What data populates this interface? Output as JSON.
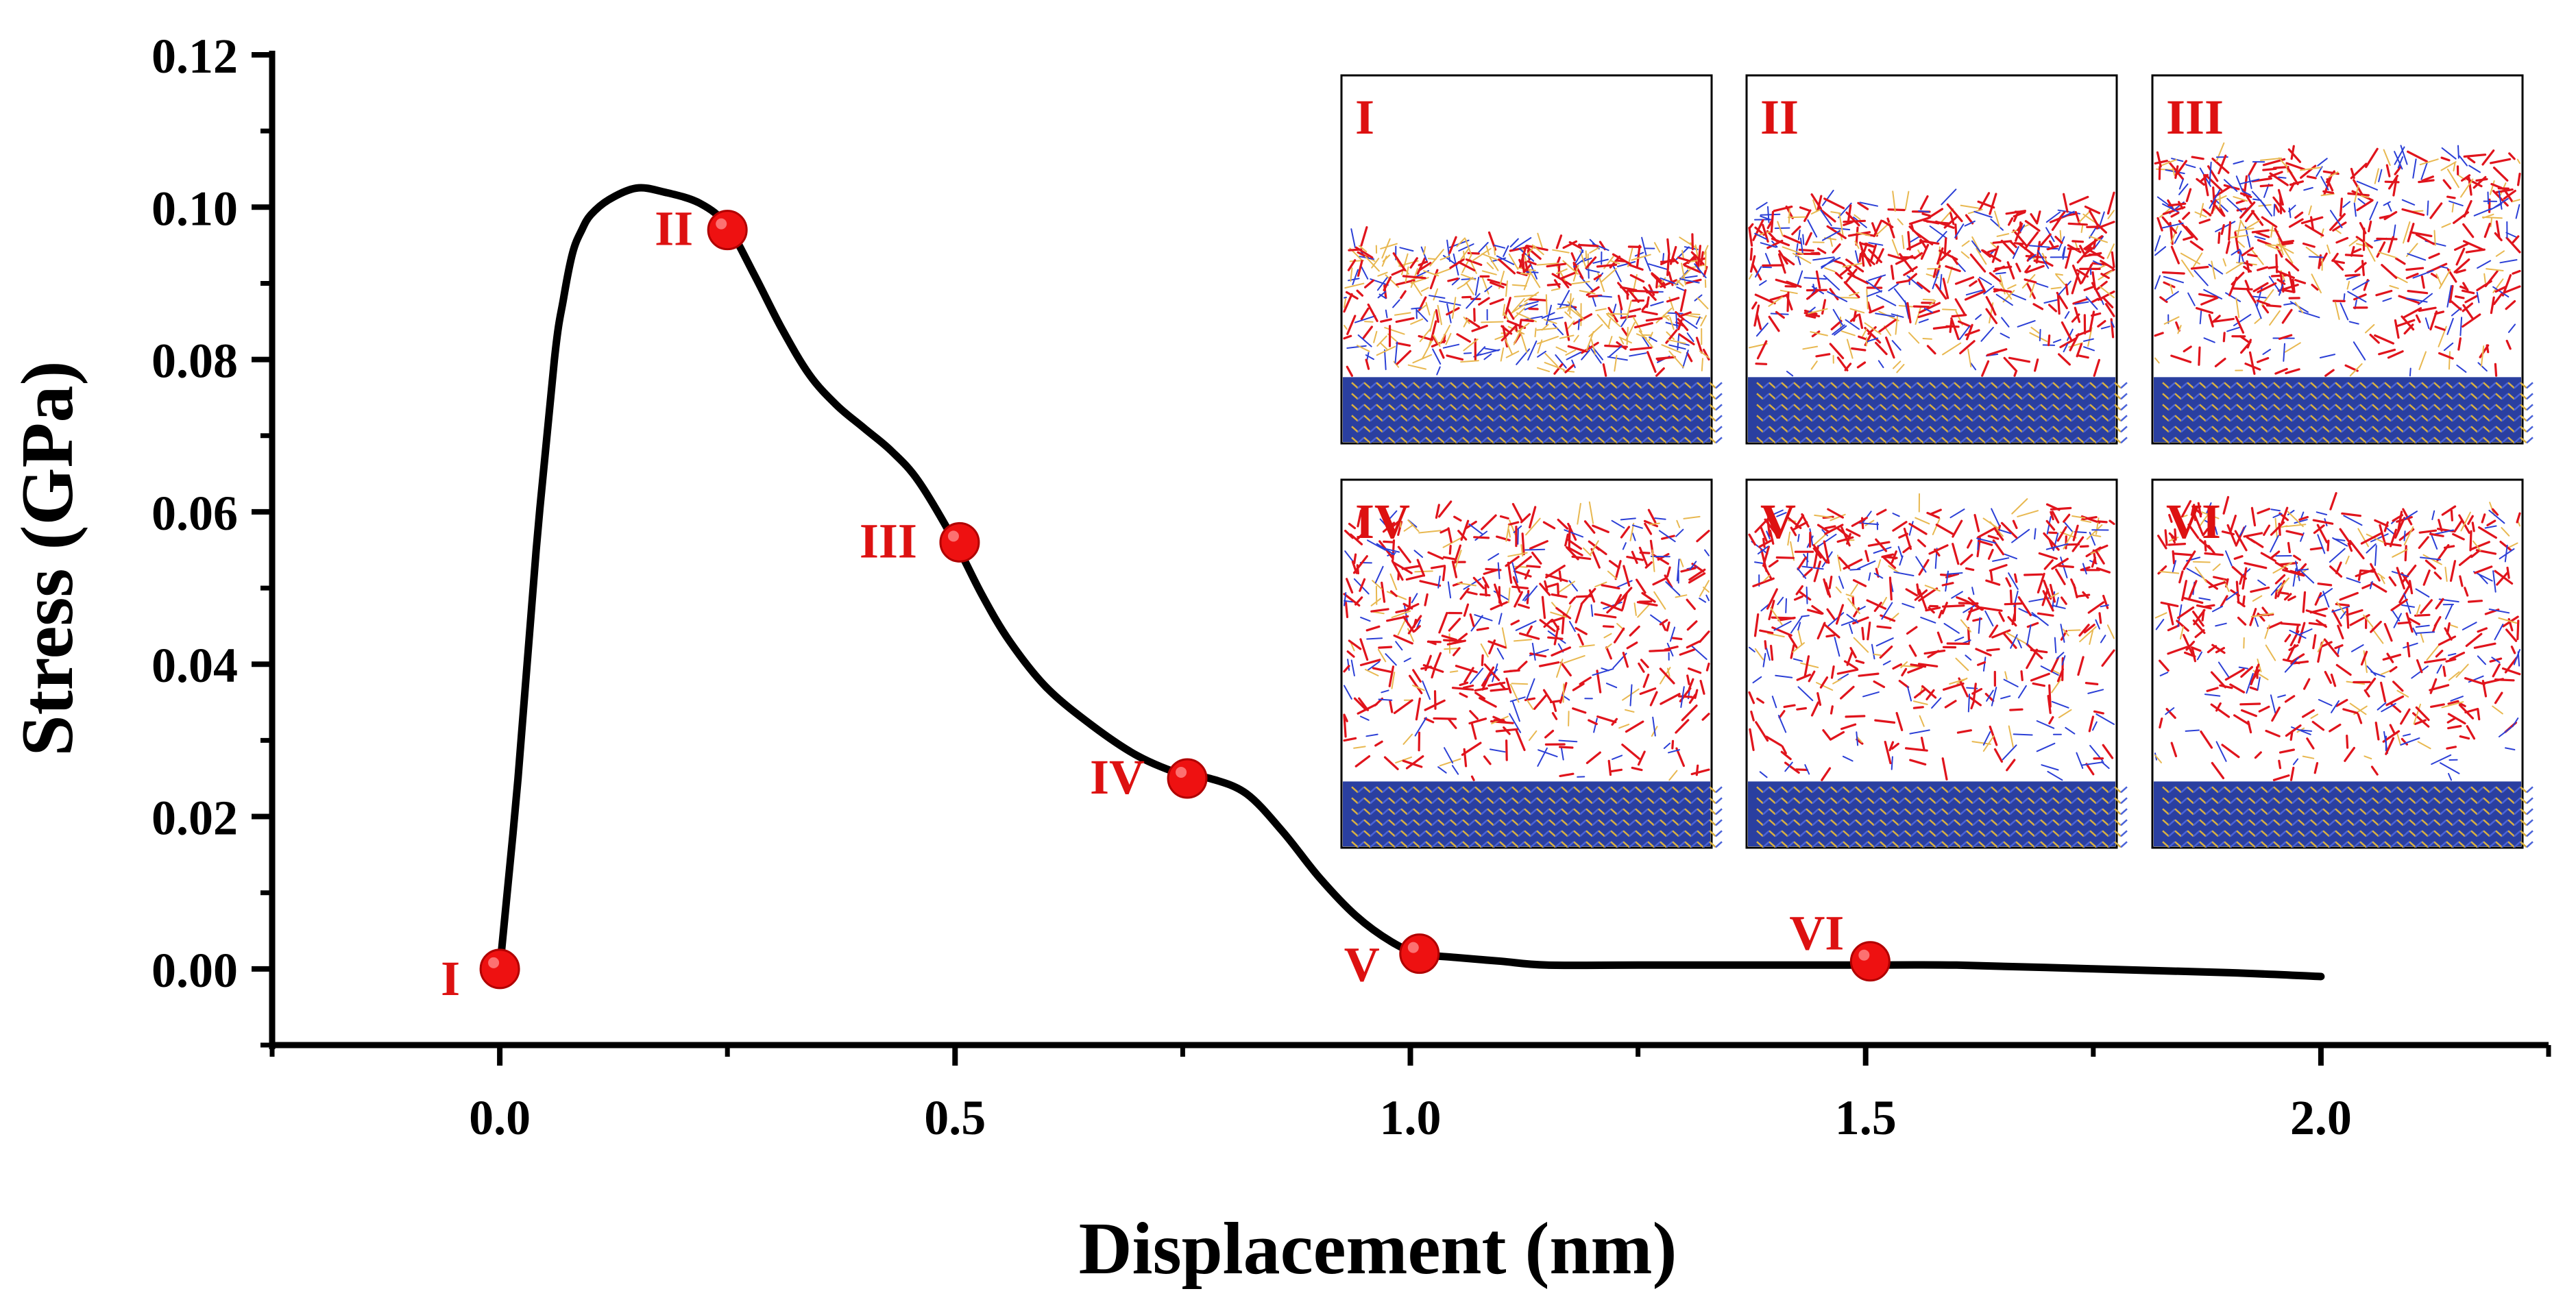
{
  "chart_data": {
    "type": "line",
    "title": "",
    "xlabel": "Displacement (nm)",
    "ylabel": "Stress (GPa)",
    "xlim": [
      -0.25,
      2.25
    ],
    "ylim": [
      -0.01,
      0.12
    ],
    "xticks": [
      0.0,
      0.5,
      1.0,
      1.5,
      2.0
    ],
    "xtick_labels": [
      "0.0",
      "0.5",
      "1.0",
      "1.5",
      "2.0"
    ],
    "yticks": [
      0.0,
      0.02,
      0.04,
      0.06,
      0.08,
      0.1,
      0.12
    ],
    "ytick_labels": [
      "0.00",
      "0.02",
      "0.04",
      "0.06",
      "0.08",
      "0.10",
      "0.12"
    ],
    "grid": false,
    "series": [
      {
        "name": "stress-displacement",
        "color": "#000000",
        "x": [
          0.0,
          0.02,
          0.04,
          0.06,
          0.07,
          0.08,
          0.09,
          0.1,
          0.12,
          0.15,
          0.18,
          0.22,
          0.25,
          0.28,
          0.31,
          0.34,
          0.37,
          0.4,
          0.43,
          0.46,
          0.5,
          0.53,
          0.56,
          0.6,
          0.65,
          0.7,
          0.75,
          0.78,
          0.82,
          0.86,
          0.9,
          0.94,
          0.98,
          1.01,
          1.05,
          1.1,
          1.15,
          1.25,
          1.4,
          1.5,
          1.6,
          1.75,
          1.9,
          2.0
        ],
        "y": [
          0.0,
          0.025,
          0.055,
          0.08,
          0.088,
          0.094,
          0.097,
          0.099,
          0.101,
          0.1025,
          0.102,
          0.1005,
          0.0975,
          0.091,
          0.084,
          0.078,
          0.074,
          0.071,
          0.068,
          0.064,
          0.056,
          0.049,
          0.043,
          0.037,
          0.032,
          0.028,
          0.0255,
          0.025,
          0.023,
          0.018,
          0.012,
          0.007,
          0.0035,
          0.002,
          0.0015,
          0.001,
          0.0005,
          0.0005,
          0.0005,
          0.0005,
          0.0005,
          0.0,
          -0.0005,
          -0.001
        ]
      }
    ],
    "markers": [
      {
        "label": "I",
        "x": 0.0,
        "y": 0.0
      },
      {
        "label": "II",
        "x": 0.25,
        "y": 0.097
      },
      {
        "label": "III",
        "x": 0.505,
        "y": 0.056
      },
      {
        "label": "IV",
        "x": 0.755,
        "y": 0.025
      },
      {
        "label": "V",
        "x": 1.01,
        "y": 0.002
      },
      {
        "label": "VI",
        "x": 1.505,
        "y": 0.001
      }
    ],
    "marker_color": "#ee1111",
    "label_color": "#dd1111",
    "insets": [
      {
        "label": "I"
      },
      {
        "label": "II"
      },
      {
        "label": "III"
      },
      {
        "label": "IV"
      },
      {
        "label": "V"
      },
      {
        "label": "VI"
      }
    ]
  }
}
